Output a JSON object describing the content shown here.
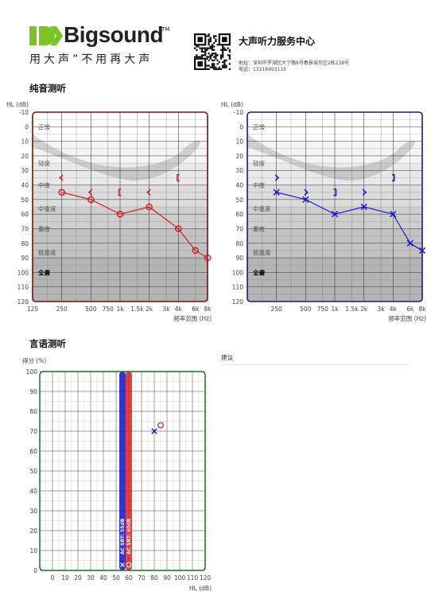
{
  "header": {
    "brand_name": "Bigsound",
    "brand_tm": "TM",
    "slogan": "用大声”不用再大声",
    "center_name": "大声听力服务中心",
    "address": "地址：深圳市罗湖区大宁路8号春景城东区2栋238号",
    "phone": "电话：13316993115"
  },
  "colors": {
    "left_ear": "#dd1111",
    "right_ear": "#1111cc",
    "left_frame": "#7a0f0f",
    "right_frame": "#1a1a6e",
    "speech_frame": "#1f6e1f",
    "brand_green": "#7ac51f"
  },
  "icons": {
    "logo": "bigsound-logo-icon",
    "qr": "qr-code-icon"
  },
  "pure_tone": {
    "title": "纯音测听",
    "y_axis_label": "HL (dB)",
    "x_axis_label": "频率范围 (Hz)",
    "y_ticks": [
      -10,
      0,
      10,
      20,
      30,
      40,
      50,
      60,
      70,
      80,
      90,
      100,
      110,
      120
    ],
    "x_ticks": [
      "125",
      "250",
      "500",
      "750",
      "1k",
      "1.5k",
      "2k",
      "3k",
      "4k",
      "6k",
      "8k"
    ],
    "x_tick_octaves": [
      0,
      1,
      2,
      2.585,
      3,
      3.585,
      4,
      4.585,
      5,
      5.585,
      6
    ],
    "zones": [
      {
        "label": "正常",
        "db": 0,
        "bold": false
      },
      {
        "label": "轻度",
        "db": 25,
        "bold": false
      },
      {
        "label": "中度",
        "db": 40,
        "bold": false
      },
      {
        "label": "中重度",
        "db": 56,
        "bold": false
      },
      {
        "label": "重度",
        "db": 70,
        "bold": false
      },
      {
        "label": "极重度",
        "db": 86,
        "bold": false
      },
      {
        "label": "全聋",
        "db": 100,
        "bold": true
      }
    ]
  },
  "chart_data": [
    {
      "type": "line",
      "name": "left-ear-audiogram",
      "x": [
        "250",
        "500",
        "1k",
        "2k",
        "4k",
        "6k",
        "8k"
      ],
      "x_octaves": [
        1,
        2,
        3,
        4,
        5,
        5.585,
        6
      ],
      "y": [
        45,
        50,
        60,
        55,
        70,
        85,
        90
      ],
      "marker": "circle",
      "bone_conduction": [
        {
          "x_octave": 1,
          "db": 35,
          "symbol": "<"
        },
        {
          "x_octave": 2,
          "db": 45,
          "symbol": "<"
        },
        {
          "x_octave": 3,
          "db": 45,
          "symbol": "["
        },
        {
          "x_octave": 4,
          "db": 45,
          "symbol": "<"
        },
        {
          "x_octave": 5,
          "db": 35,
          "symbol": "["
        }
      ],
      "ylim": [
        -10,
        120
      ],
      "ylabel": "HL (dB)",
      "xlabel": "频率范围 (Hz)"
    },
    {
      "type": "line",
      "name": "right-ear-audiogram",
      "x": [
        "250",
        "500",
        "1k",
        "2k",
        "4k",
        "6k",
        "8k"
      ],
      "x_octaves": [
        1,
        2,
        3,
        4,
        5,
        5.585,
        6
      ],
      "y": [
        45,
        50,
        60,
        55,
        60,
        80,
        85
      ],
      "marker": "x",
      "bone_conduction": [
        {
          "x_octave": 1,
          "db": 35,
          "symbol": ">"
        },
        {
          "x_octave": 2,
          "db": 45,
          "symbol": ">"
        },
        {
          "x_octave": 3,
          "db": 45,
          "symbol": "]"
        },
        {
          "x_octave": 4,
          "db": 45,
          "symbol": ">"
        },
        {
          "x_octave": 5,
          "db": 35,
          "symbol": "]"
        }
      ],
      "ylim": [
        -10,
        120
      ],
      "ylabel": "HL (dB)",
      "xlabel": "频率范围 (Hz)"
    },
    {
      "type": "scatter",
      "name": "speech-audiometry",
      "title": "言语测听",
      "ylabel": "得分 (%)",
      "xlabel": "HL (dB)",
      "xlim": [
        -10,
        120
      ],
      "ylim": [
        0,
        100
      ],
      "x_ticks": [
        0,
        10,
        20,
        30,
        40,
        50,
        60,
        70,
        80,
        90,
        100,
        110,
        120
      ],
      "y_ticks": [
        0,
        10,
        20,
        30,
        40,
        50,
        60,
        70,
        80,
        90,
        100
      ],
      "srt_bars": [
        {
          "label": "AC SRT: 55dB",
          "x": 55,
          "ear": "right"
        },
        {
          "label": "AC SRT: 60dB",
          "x": 60,
          "ear": "left"
        }
      ],
      "points": [
        {
          "x": 80,
          "y": 70,
          "ear": "right",
          "marker": "x"
        },
        {
          "x": 85,
          "y": 73,
          "ear": "left",
          "marker": "circle"
        }
      ]
    }
  ],
  "advice": {
    "label": "建议"
  }
}
